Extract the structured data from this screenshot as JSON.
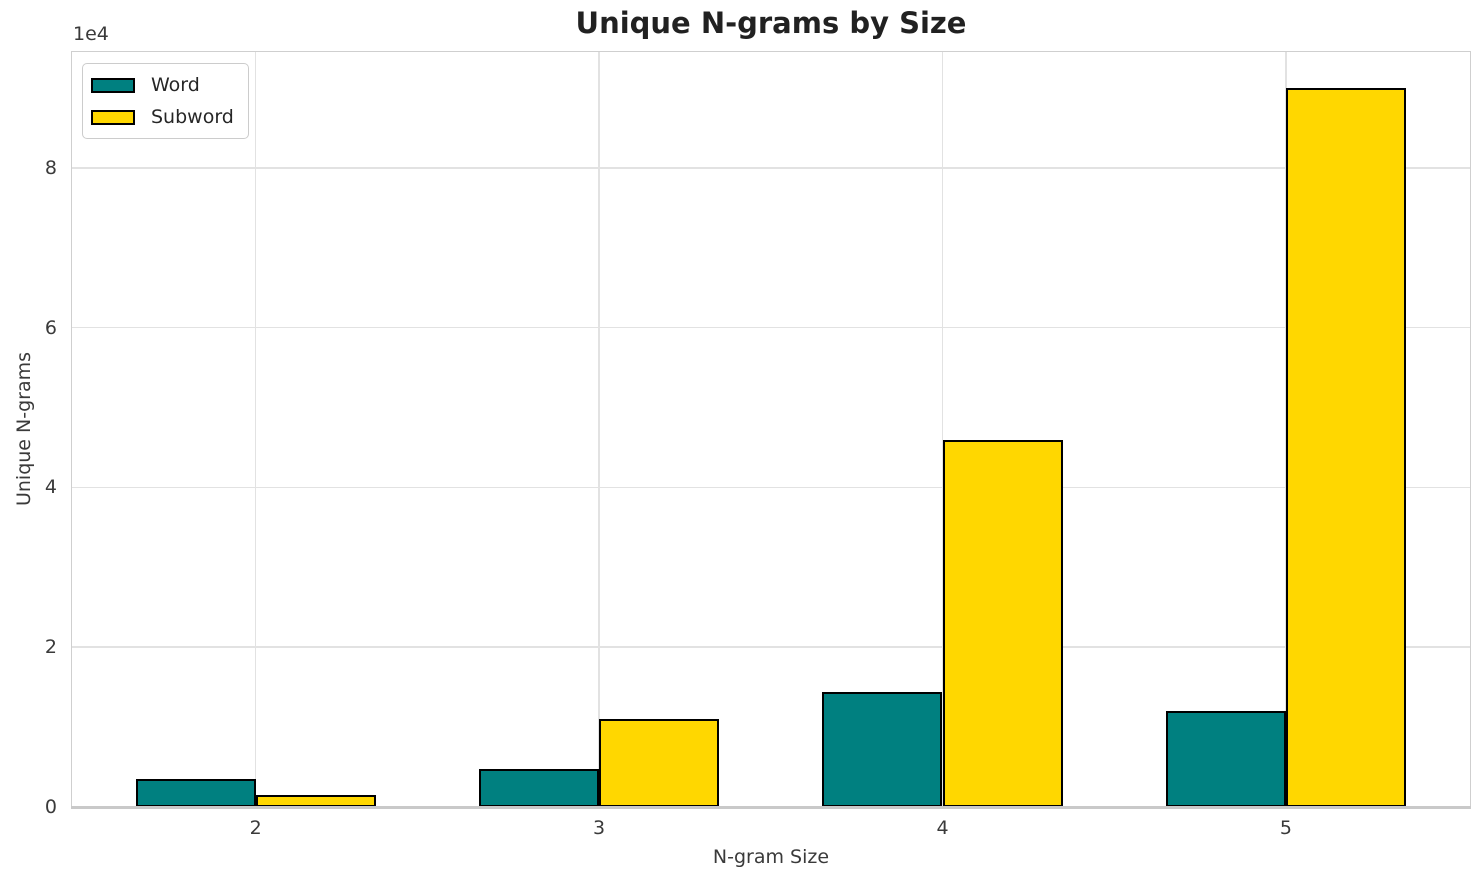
{
  "chart_data": {
    "type": "bar",
    "title": "Unique N-grams by Size",
    "xlabel": "N-gram Size",
    "ylabel": "Unique N-grams",
    "categories": [
      "2",
      "3",
      "4",
      "5"
    ],
    "series": [
      {
        "name": "Word",
        "color": "#008080",
        "values": [
          3500,
          4800,
          14400,
          12000
        ]
      },
      {
        "name": "Subword",
        "color": "#FFD700",
        "values": [
          1500,
          11000,
          46000,
          90000
        ]
      }
    ],
    "bar_edge_color": "#000000",
    "bar_width_fraction": 0.35,
    "ylim": [
      0,
      94500
    ],
    "y_ticks": [
      0,
      20000,
      40000,
      60000,
      80000
    ],
    "y_tick_labels": [
      "0",
      "2",
      "4",
      "6",
      "8"
    ],
    "y_offset_label": "1e4",
    "grid": true,
    "legend_position": "upper left"
  }
}
